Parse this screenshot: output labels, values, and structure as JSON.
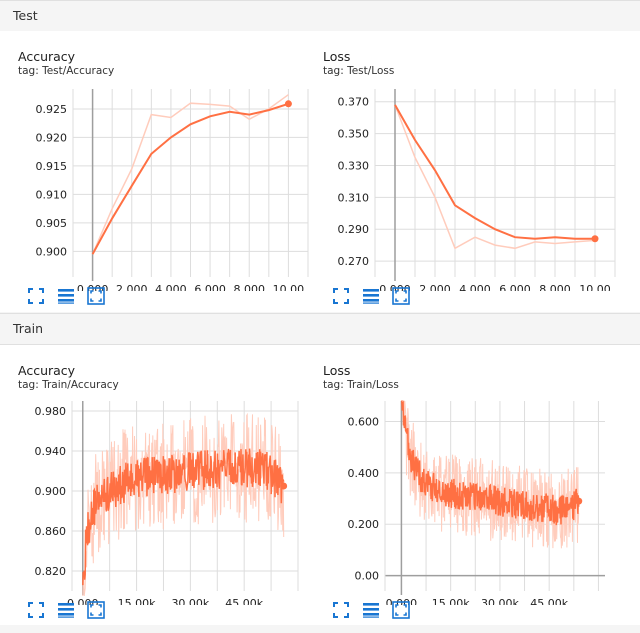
{
  "sections": [
    {
      "title": "Test",
      "charts": [
        {
          "title": "Accuracy",
          "tag": "tag: Test/Accuracy",
          "chart_data": {
            "type": "line",
            "xlim": [
              -1,
              11
            ],
            "ylim": [
              0.8955,
              0.9285
            ],
            "xticks": [
              0,
              2,
              4,
              6,
              8,
              10
            ],
            "xtick_labels": [
              "0.000",
              "2.000",
              "4.000",
              "6.000",
              "8.000",
              "10.00"
            ],
            "yticks": [
              0.9,
              0.905,
              0.91,
              0.915,
              0.92,
              0.925
            ],
            "ytick_labels": [
              "0.900",
              "0.905",
              "0.910",
              "0.915",
              "0.920",
              "0.925"
            ],
            "raw": {
              "x": [
                0,
                1,
                2,
                3,
                4,
                5,
                6,
                7,
                8,
                9,
                10
              ],
              "y": [
                0.8995,
                0.9075,
                0.9145,
                0.924,
                0.9235,
                0.926,
                0.9258,
                0.9255,
                0.9232,
                0.925,
                0.9275
              ]
            },
            "smoothed": {
              "x": [
                0,
                1,
                2,
                3,
                4,
                5,
                6,
                7,
                8,
                9,
                10
              ],
              "y": [
                0.8995,
                0.9058,
                0.9115,
                0.9171,
                0.92,
                0.9223,
                0.9237,
                0.9245,
                0.924,
                0.9248,
                0.9259
              ]
            }
          }
        },
        {
          "title": "Loss",
          "tag": "tag: Test/Loss",
          "chart_data": {
            "type": "line",
            "xlim": [
              -1,
              11
            ],
            "ylim": [
              0.26,
              0.378
            ],
            "xticks": [
              0,
              2,
              4,
              6,
              8,
              10
            ],
            "xtick_labels": [
              "0.000",
              "2.000",
              "4.000",
              "6.000",
              "8.000",
              "10.00"
            ],
            "yticks": [
              0.27,
              0.29,
              0.31,
              0.33,
              0.35,
              0.37
            ],
            "ytick_labels": [
              "0.270",
              "0.290",
              "0.310",
              "0.330",
              "0.350",
              "0.370"
            ],
            "raw": {
              "x": [
                0,
                1,
                2,
                3,
                4,
                5,
                6,
                7,
                8,
                9,
                10
              ],
              "y": [
                0.368,
                0.335,
                0.31,
                0.278,
                0.285,
                0.28,
                0.278,
                0.282,
                0.281,
                0.282,
                0.283
              ]
            },
            "smoothed": {
              "x": [
                0,
                1,
                2,
                3,
                4,
                5,
                6,
                7,
                8,
                9,
                10
              ],
              "y": [
                0.368,
                0.346,
                0.327,
                0.305,
                0.297,
                0.29,
                0.285,
                0.284,
                0.285,
                0.284,
                0.284
              ]
            }
          }
        }
      ]
    },
    {
      "title": "Train",
      "charts": [
        {
          "title": "Accuracy",
          "tag": "tag: Train/Accuracy",
          "chart_data": {
            "type": "line",
            "noisy": true,
            "xlim": [
              -3000,
              60000
            ],
            "ylim": [
              0.8,
              0.99
            ],
            "xticks": [
              0,
              15000,
              30000,
              45000
            ],
            "xtick_labels": [
              "0.000",
              "15.00k",
              "30.00k",
              "45.00k"
            ],
            "yticks": [
              0.82,
              0.86,
              0.9,
              0.94,
              0.98
            ],
            "ytick_labels": [
              "0.820",
              "0.860",
              "0.900",
              "0.940",
              "0.980"
            ],
            "trend": {
              "x": [
                0,
                1000,
                3000,
                6000,
                10000,
                15000,
                20000,
                30000,
                40000,
                50000,
                56000
              ],
              "y": [
                0.795,
                0.855,
                0.882,
                0.895,
                0.906,
                0.912,
                0.915,
                0.92,
                0.922,
                0.924,
                0.905
              ]
            },
            "smoothed_noise": 0.02,
            "raw_noise": 0.055,
            "y_clip": [
              0.795,
              0.99
            ],
            "end_point": {
              "x": 56000,
              "y": 0.905
            }
          }
        },
        {
          "title": "Loss",
          "tag": "tag: Train/Loss",
          "chart_data": {
            "type": "line",
            "noisy": true,
            "xlim": [
              -5000,
              62000
            ],
            "ylim": [
              -0.06,
              0.68
            ],
            "xticks": [
              0,
              15000,
              30000,
              45000
            ],
            "xtick_labels": [
              "0.000",
              "15.00k",
              "30.00k",
              "45.00k"
            ],
            "yticks": [
              0.0,
              0.2,
              0.4,
              0.6
            ],
            "ytick_labels": [
              "0.00",
              "0.200",
              "0.400",
              "0.600"
            ],
            "trend": {
              "x": [
                0,
                1000,
                3000,
                6000,
                10000,
                15000,
                20000,
                30000,
                40000,
                50000,
                54000
              ],
              "y": [
                0.68,
                0.58,
                0.45,
                0.38,
                0.34,
                0.32,
                0.31,
                0.29,
                0.27,
                0.25,
                0.29
              ]
            },
            "smoothed_noise": 0.06,
            "raw_noise": 0.16,
            "y_clip": [
              0.02,
              0.68
            ],
            "end_point": {
              "x": 54000,
              "y": 0.29
            }
          }
        }
      ]
    }
  ],
  "colors": {
    "line": "#ff7043",
    "raw": "#ffccbc",
    "grid": "#dddddd",
    "axis": "#9e9e9e",
    "icon": "#1976d2"
  },
  "icons": [
    "fit-to-screen-icon",
    "toggle-log-scale-icon",
    "fit-domain-icon"
  ]
}
